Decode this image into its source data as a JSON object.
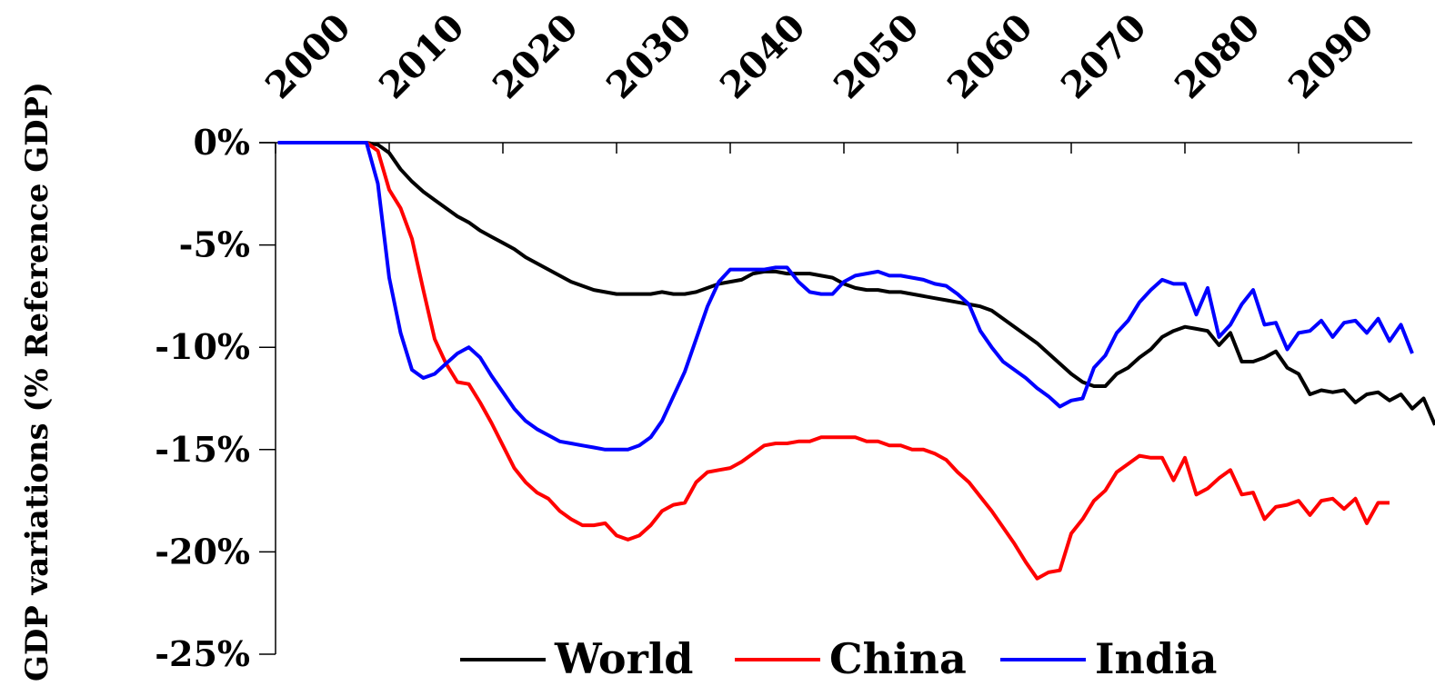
{
  "chart_data": {
    "type": "line",
    "title": "",
    "xlabel": "",
    "ylabel": "GDP variations (% Reference GDP)",
    "ylim": [
      -25,
      0
    ],
    "xlim": [
      2000,
      2100
    ],
    "x_ticks": [
      "2000",
      "2010",
      "2020",
      "2030",
      "2040",
      "2050",
      "2060",
      "2070",
      "2080",
      "2090"
    ],
    "y_ticks": [
      "0%",
      "-5%",
      "-10%",
      "-15%",
      "-20%",
      "-25%"
    ],
    "y_tick_values": [
      0,
      -5,
      -10,
      -15,
      -20,
      -25
    ],
    "legend_position": "bottom",
    "grid": false,
    "series": [
      {
        "name": "World",
        "color": "#000000",
        "points": [
          [
            2000.2,
            0
          ],
          [
            2001,
            0
          ],
          [
            2002,
            0
          ],
          [
            2003,
            0
          ],
          [
            2004,
            0
          ],
          [
            2005,
            0
          ],
          [
            2006,
            0
          ],
          [
            2007,
            0
          ],
          [
            2008,
            0
          ],
          [
            2009,
            -0.1
          ],
          [
            2010,
            -0.5
          ],
          [
            2011,
            -1.3
          ],
          [
            2012,
            -1.9
          ],
          [
            2013,
            -2.4
          ],
          [
            2014,
            -2.8
          ],
          [
            2015,
            -3.2
          ],
          [
            2016,
            -3.6
          ],
          [
            2017,
            -3.9
          ],
          [
            2018,
            -4.3
          ],
          [
            2019,
            -4.6
          ],
          [
            2020,
            -4.9
          ],
          [
            2021,
            -5.2
          ],
          [
            2022,
            -5.6
          ],
          [
            2023,
            -5.9
          ],
          [
            2024,
            -6.2
          ],
          [
            2025,
            -6.5
          ],
          [
            2026,
            -6.8
          ],
          [
            2027,
            -7.0
          ],
          [
            2028,
            -7.2
          ],
          [
            2029,
            -7.3
          ],
          [
            2030,
            -7.4
          ],
          [
            2031,
            -7.4
          ],
          [
            2032,
            -7.4
          ],
          [
            2033,
            -7.4
          ],
          [
            2034,
            -7.3
          ],
          [
            2035,
            -7.4
          ],
          [
            2036,
            -7.4
          ],
          [
            2037,
            -7.3
          ],
          [
            2038,
            -7.1
          ],
          [
            2039,
            -6.9
          ],
          [
            2040,
            -6.8
          ],
          [
            2041,
            -6.7
          ],
          [
            2042,
            -6.4
          ],
          [
            2043,
            -6.3
          ],
          [
            2044,
            -6.3
          ],
          [
            2045,
            -6.4
          ],
          [
            2046,
            -6.4
          ],
          [
            2047,
            -6.4
          ],
          [
            2048,
            -6.5
          ],
          [
            2049,
            -6.6
          ],
          [
            2050,
            -6.9
          ],
          [
            2051,
            -7.1
          ],
          [
            2052,
            -7.2
          ],
          [
            2053,
            -7.2
          ],
          [
            2054,
            -7.3
          ],
          [
            2055,
            -7.3
          ],
          [
            2056,
            -7.4
          ],
          [
            2057,
            -7.5
          ],
          [
            2058,
            -7.6
          ],
          [
            2059,
            -7.7
          ],
          [
            2060,
            -7.8
          ],
          [
            2061,
            -7.9
          ],
          [
            2062,
            -8.0
          ],
          [
            2063,
            -8.2
          ],
          [
            2064,
            -8.6
          ],
          [
            2065,
            -9.0
          ],
          [
            2066,
            -9.4
          ],
          [
            2067,
            -9.8
          ],
          [
            2068,
            -10.3
          ],
          [
            2069,
            -10.8
          ],
          [
            2070,
            -11.3
          ],
          [
            2071,
            -11.7
          ],
          [
            2072,
            -11.9
          ],
          [
            2073,
            -11.9
          ],
          [
            2074,
            -11.3
          ],
          [
            2075,
            -11.0
          ],
          [
            2076,
            -10.5
          ],
          [
            2077,
            -10.1
          ],
          [
            2078,
            -9.5
          ],
          [
            2079,
            -9.2
          ],
          [
            2080,
            -9.0
          ],
          [
            2081,
            -9.1
          ],
          [
            2082,
            -9.2
          ],
          [
            2083,
            -9.9
          ],
          [
            2084,
            -9.3
          ],
          [
            2085,
            -10.7
          ],
          [
            2086,
            -10.7
          ],
          [
            2087,
            -10.5
          ],
          [
            2088,
            -10.2
          ],
          [
            2089,
            -11.0
          ],
          [
            2090,
            -11.3
          ],
          [
            2091,
            -12.3
          ],
          [
            2092,
            -12.1
          ],
          [
            2093,
            -12.2
          ],
          [
            2094,
            -12.1
          ],
          [
            2095,
            -12.7
          ],
          [
            2096,
            -12.3
          ],
          [
            2097,
            -12.2
          ],
          [
            2098,
            -12.6
          ],
          [
            2099,
            -12.3
          ],
          [
            2100,
            -13.0
          ],
          [
            2101,
            -12.5
          ],
          [
            2102,
            -13.8
          ]
        ]
      },
      {
        "name": "China",
        "color": "#ff0000",
        "points": [
          [
            2000.2,
            0
          ],
          [
            2001,
            0
          ],
          [
            2002,
            0
          ],
          [
            2003,
            0
          ],
          [
            2004,
            0
          ],
          [
            2005,
            0
          ],
          [
            2006,
            0
          ],
          [
            2007,
            0
          ],
          [
            2008,
            0
          ],
          [
            2009,
            -0.4
          ],
          [
            2010,
            -2.3
          ],
          [
            2011,
            -3.2
          ],
          [
            2012,
            -4.7
          ],
          [
            2013,
            -7.2
          ],
          [
            2014,
            -9.6
          ],
          [
            2015,
            -10.8
          ],
          [
            2016,
            -11.7
          ],
          [
            2017,
            -11.8
          ],
          [
            2018,
            -12.7
          ],
          [
            2019,
            -13.7
          ],
          [
            2020,
            -14.8
          ],
          [
            2021,
            -15.9
          ],
          [
            2022,
            -16.6
          ],
          [
            2023,
            -17.1
          ],
          [
            2024,
            -17.4
          ],
          [
            2025,
            -18.0
          ],
          [
            2026,
            -18.4
          ],
          [
            2027,
            -18.7
          ],
          [
            2028,
            -18.7
          ],
          [
            2029,
            -18.6
          ],
          [
            2030,
            -19.2
          ],
          [
            2031,
            -19.4
          ],
          [
            2032,
            -19.2
          ],
          [
            2033,
            -18.7
          ],
          [
            2034,
            -18.0
          ],
          [
            2035,
            -17.7
          ],
          [
            2036,
            -17.6
          ],
          [
            2037,
            -16.6
          ],
          [
            2038,
            -16.1
          ],
          [
            2039,
            -16.0
          ],
          [
            2040,
            -15.9
          ],
          [
            2041,
            -15.6
          ],
          [
            2042,
            -15.2
          ],
          [
            2043,
            -14.8
          ],
          [
            2044,
            -14.7
          ],
          [
            2045,
            -14.7
          ],
          [
            2046,
            -14.6
          ],
          [
            2047,
            -14.6
          ],
          [
            2048,
            -14.4
          ],
          [
            2049,
            -14.4
          ],
          [
            2050,
            -14.4
          ],
          [
            2051,
            -14.4
          ],
          [
            2052,
            -14.6
          ],
          [
            2053,
            -14.6
          ],
          [
            2054,
            -14.8
          ],
          [
            2055,
            -14.8
          ],
          [
            2056,
            -15.0
          ],
          [
            2057,
            -15.0
          ],
          [
            2058,
            -15.2
          ],
          [
            2059,
            -15.5
          ],
          [
            2060,
            -16.1
          ],
          [
            2061,
            -16.6
          ],
          [
            2062,
            -17.3
          ],
          [
            2063,
            -18.0
          ],
          [
            2064,
            -18.8
          ],
          [
            2065,
            -19.6
          ],
          [
            2066,
            -20.5
          ],
          [
            2067,
            -21.3
          ],
          [
            2068,
            -21.0
          ],
          [
            2069,
            -20.9
          ],
          [
            2070,
            -19.1
          ],
          [
            2071,
            -18.4
          ],
          [
            2072,
            -17.5
          ],
          [
            2073,
            -17.0
          ],
          [
            2074,
            -16.1
          ],
          [
            2075,
            -15.7
          ],
          [
            2076,
            -15.3
          ],
          [
            2077,
            -15.4
          ],
          [
            2078,
            -15.4
          ],
          [
            2079,
            -16.5
          ],
          [
            2080,
            -15.4
          ],
          [
            2081,
            -17.2
          ],
          [
            2082,
            -16.9
          ],
          [
            2083,
            -16.4
          ],
          [
            2084,
            -16.0
          ],
          [
            2085,
            -17.2
          ],
          [
            2086,
            -17.1
          ],
          [
            2087,
            -18.4
          ],
          [
            2088,
            -17.8
          ],
          [
            2089,
            -17.7
          ],
          [
            2090,
            -17.5
          ],
          [
            2091,
            -18.2
          ],
          [
            2092,
            -17.5
          ],
          [
            2093,
            -17.4
          ],
          [
            2094,
            -17.9
          ],
          [
            2095,
            -17.4
          ],
          [
            2096,
            -18.6
          ],
          [
            2097,
            -17.6
          ],
          [
            2098,
            -17.6
          ]
        ]
      },
      {
        "name": "India",
        "color": "#0000ff",
        "points": [
          [
            2000.2,
            0
          ],
          [
            2001,
            0
          ],
          [
            2002,
            0
          ],
          [
            2003,
            0
          ],
          [
            2004,
            0
          ],
          [
            2005,
            0
          ],
          [
            2006,
            0
          ],
          [
            2007,
            0
          ],
          [
            2008,
            0
          ],
          [
            2009,
            -2.0
          ],
          [
            2010,
            -6.6
          ],
          [
            2011,
            -9.3
          ],
          [
            2012,
            -11.1
          ],
          [
            2013,
            -11.5
          ],
          [
            2014,
            -11.3
          ],
          [
            2015,
            -10.8
          ],
          [
            2016,
            -10.3
          ],
          [
            2017,
            -10.0
          ],
          [
            2018,
            -10.5
          ],
          [
            2019,
            -11.4
          ],
          [
            2020,
            -12.2
          ],
          [
            2021,
            -13.0
          ],
          [
            2022,
            -13.6
          ],
          [
            2023,
            -14.0
          ],
          [
            2024,
            -14.3
          ],
          [
            2025,
            -14.6
          ],
          [
            2026,
            -14.7
          ],
          [
            2027,
            -14.8
          ],
          [
            2028,
            -14.9
          ],
          [
            2029,
            -15.0
          ],
          [
            2030,
            -15.0
          ],
          [
            2031,
            -15.0
          ],
          [
            2032,
            -14.8
          ],
          [
            2033,
            -14.4
          ],
          [
            2034,
            -13.6
          ],
          [
            2035,
            -12.4
          ],
          [
            2036,
            -11.2
          ],
          [
            2037,
            -9.6
          ],
          [
            2038,
            -8.0
          ],
          [
            2039,
            -6.8
          ],
          [
            2040,
            -6.2
          ],
          [
            2041,
            -6.2
          ],
          [
            2042,
            -6.2
          ],
          [
            2043,
            -6.2
          ],
          [
            2044,
            -6.1
          ],
          [
            2045,
            -6.1
          ],
          [
            2046,
            -6.8
          ],
          [
            2047,
            -7.3
          ],
          [
            2048,
            -7.4
          ],
          [
            2049,
            -7.4
          ],
          [
            2050,
            -6.8
          ],
          [
            2051,
            -6.5
          ],
          [
            2052,
            -6.4
          ],
          [
            2053,
            -6.3
          ],
          [
            2054,
            -6.5
          ],
          [
            2055,
            -6.5
          ],
          [
            2056,
            -6.6
          ],
          [
            2057,
            -6.7
          ],
          [
            2058,
            -6.9
          ],
          [
            2059,
            -7.0
          ],
          [
            2060,
            -7.4
          ],
          [
            2061,
            -7.9
          ],
          [
            2062,
            -9.2
          ],
          [
            2063,
            -10.0
          ],
          [
            2064,
            -10.7
          ],
          [
            2065,
            -11.1
          ],
          [
            2066,
            -11.5
          ],
          [
            2067,
            -12.0
          ],
          [
            2068,
            -12.4
          ],
          [
            2069,
            -12.9
          ],
          [
            2070,
            -12.6
          ],
          [
            2071,
            -12.5
          ],
          [
            2072,
            -11.0
          ],
          [
            2073,
            -10.4
          ],
          [
            2074,
            -9.3
          ],
          [
            2075,
            -8.7
          ],
          [
            2076,
            -7.8
          ],
          [
            2077,
            -7.2
          ],
          [
            2078,
            -6.7
          ],
          [
            2079,
            -6.9
          ],
          [
            2080,
            -6.9
          ],
          [
            2081,
            -8.4
          ],
          [
            2082,
            -7.1
          ],
          [
            2083,
            -9.5
          ],
          [
            2084,
            -8.9
          ],
          [
            2085,
            -7.9
          ],
          [
            2086,
            -7.2
          ],
          [
            2087,
            -8.9
          ],
          [
            2088,
            -8.8
          ],
          [
            2089,
            -10.1
          ],
          [
            2090,
            -9.3
          ],
          [
            2091,
            -9.2
          ],
          [
            2092,
            -8.7
          ],
          [
            2093,
            -9.5
          ],
          [
            2094,
            -8.8
          ],
          [
            2095,
            -8.7
          ],
          [
            2096,
            -9.3
          ],
          [
            2097,
            -8.6
          ],
          [
            2098,
            -9.7
          ],
          [
            2099,
            -8.9
          ],
          [
            2100,
            -10.3
          ]
        ]
      }
    ]
  }
}
